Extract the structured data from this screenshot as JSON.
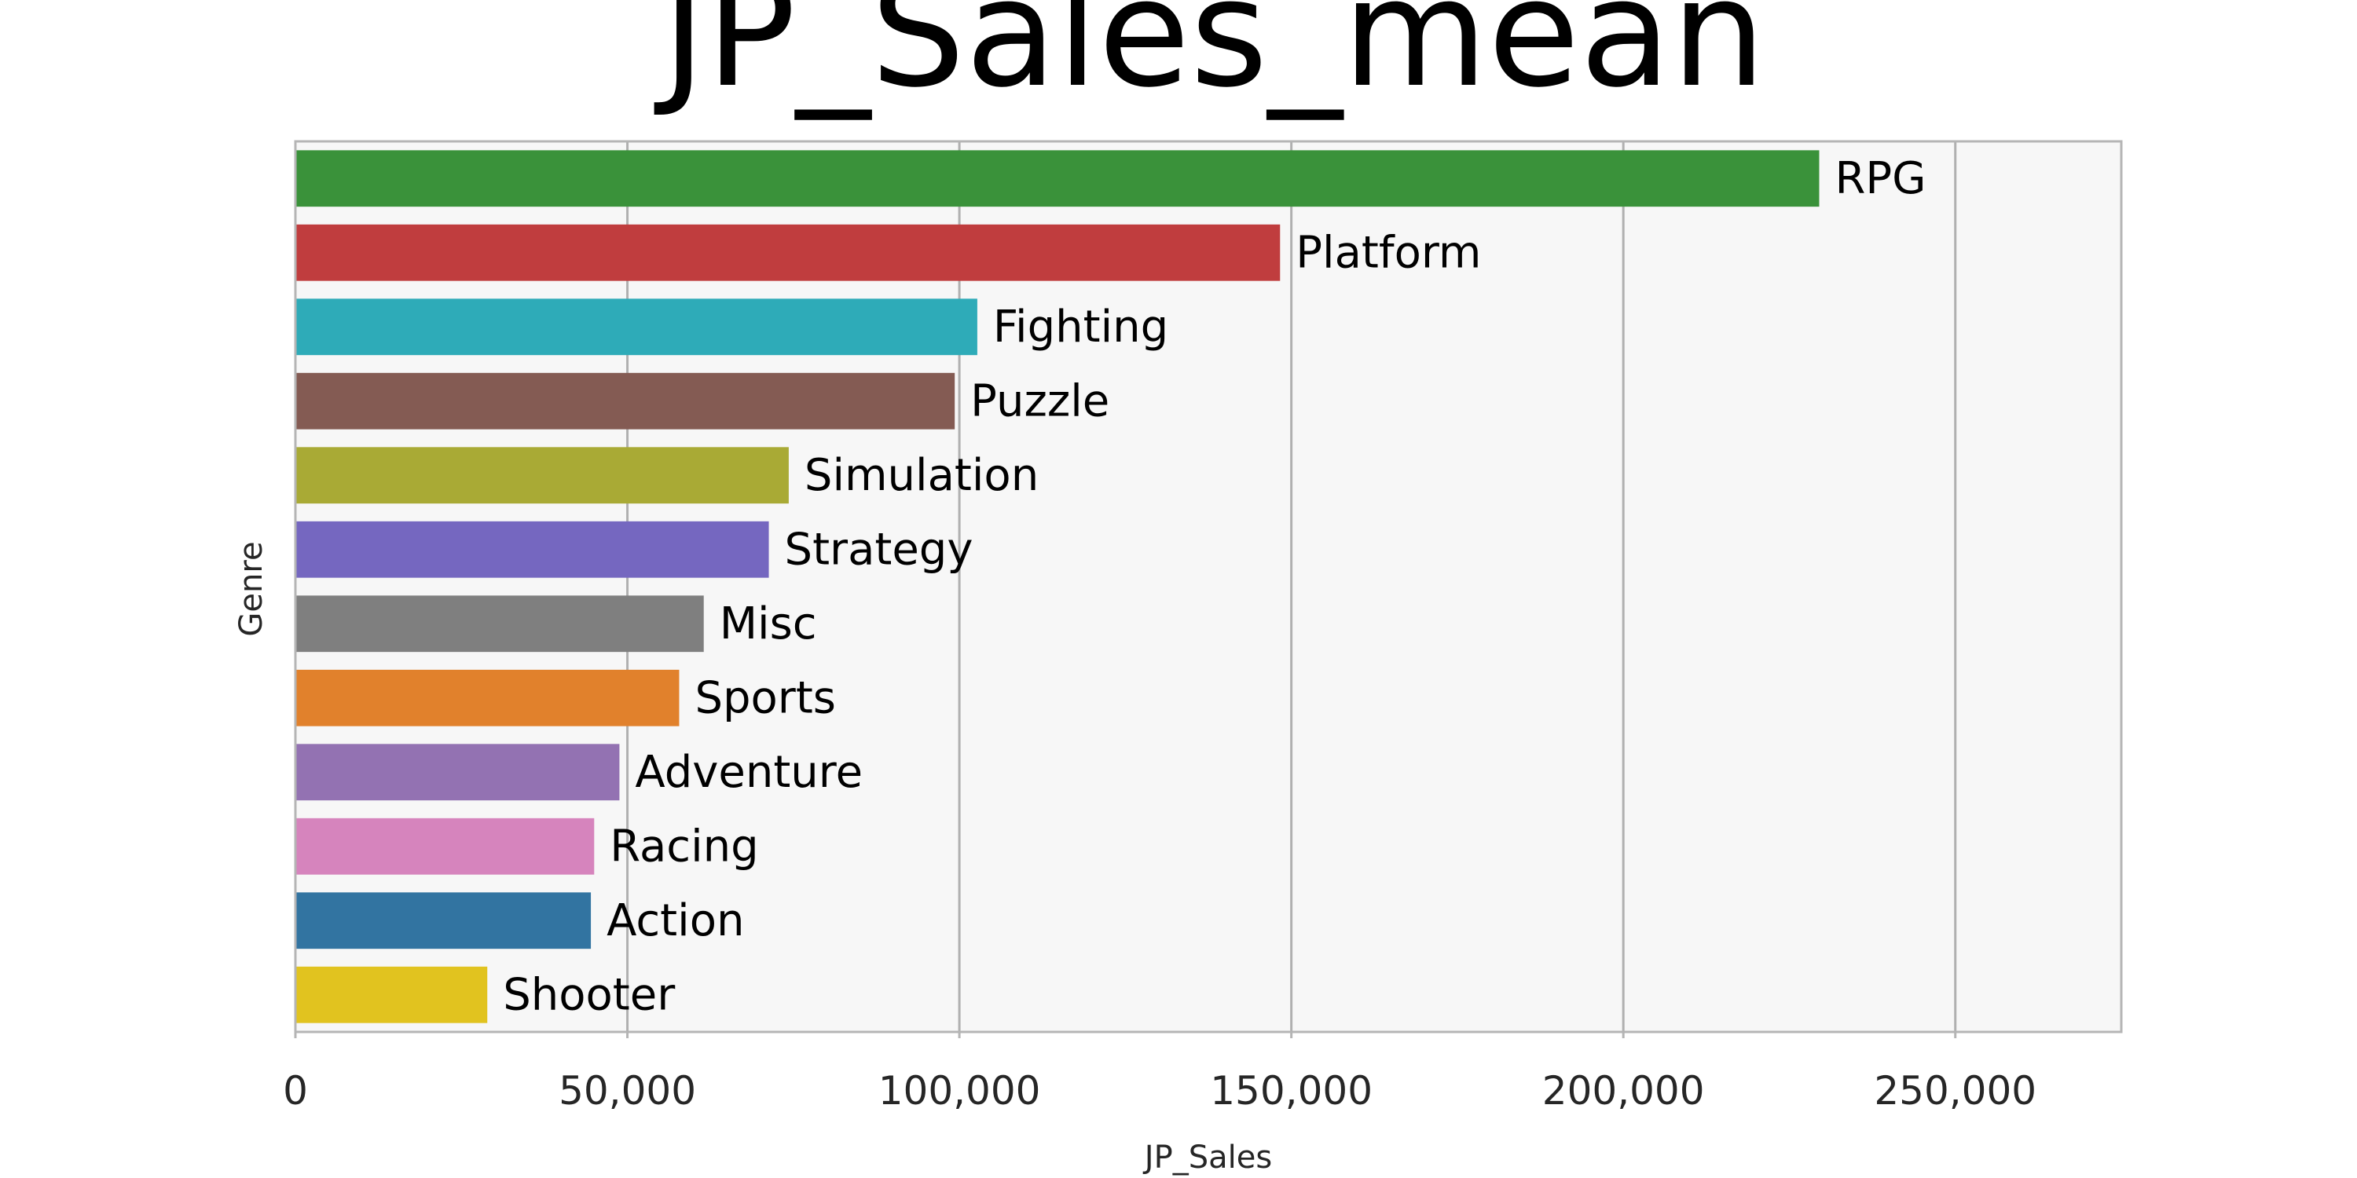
{
  "chart_data": {
    "type": "bar",
    "orientation": "horizontal",
    "title": "JP_Sales_mean",
    "xlabel": "JP_Sales",
    "ylabel": "Genre",
    "xlim": [
      0,
      275000
    ],
    "x_ticks": [
      0,
      50000,
      100000,
      150000,
      200000,
      250000
    ],
    "x_tick_labels": [
      "0",
      "50,000",
      "100,000",
      "150,000",
      "200,000",
      "250,000"
    ],
    "grid": "vertical",
    "legend": "none",
    "categories": [
      "RPG",
      "Platform",
      "Fighting",
      "Puzzle",
      "Simulation",
      "Strategy",
      "Misc",
      "Sports",
      "Adventure",
      "Racing",
      "Action",
      "Shooter"
    ],
    "values": [
      229500,
      148300,
      102700,
      99300,
      74300,
      71300,
      61500,
      57800,
      48800,
      45000,
      44500,
      28900
    ],
    "colors": [
      "#3a923a",
      "#c03d3e",
      "#2eabb8",
      "#845b53",
      "#a9aa35",
      "#7567c0",
      "#7f7f7f",
      "#e1812c",
      "#9372b2",
      "#d684bd",
      "#3274a1",
      "#e1c31f"
    ],
    "plot_background": "#f7f7f7",
    "grid_color": "#b0b0b0"
  }
}
